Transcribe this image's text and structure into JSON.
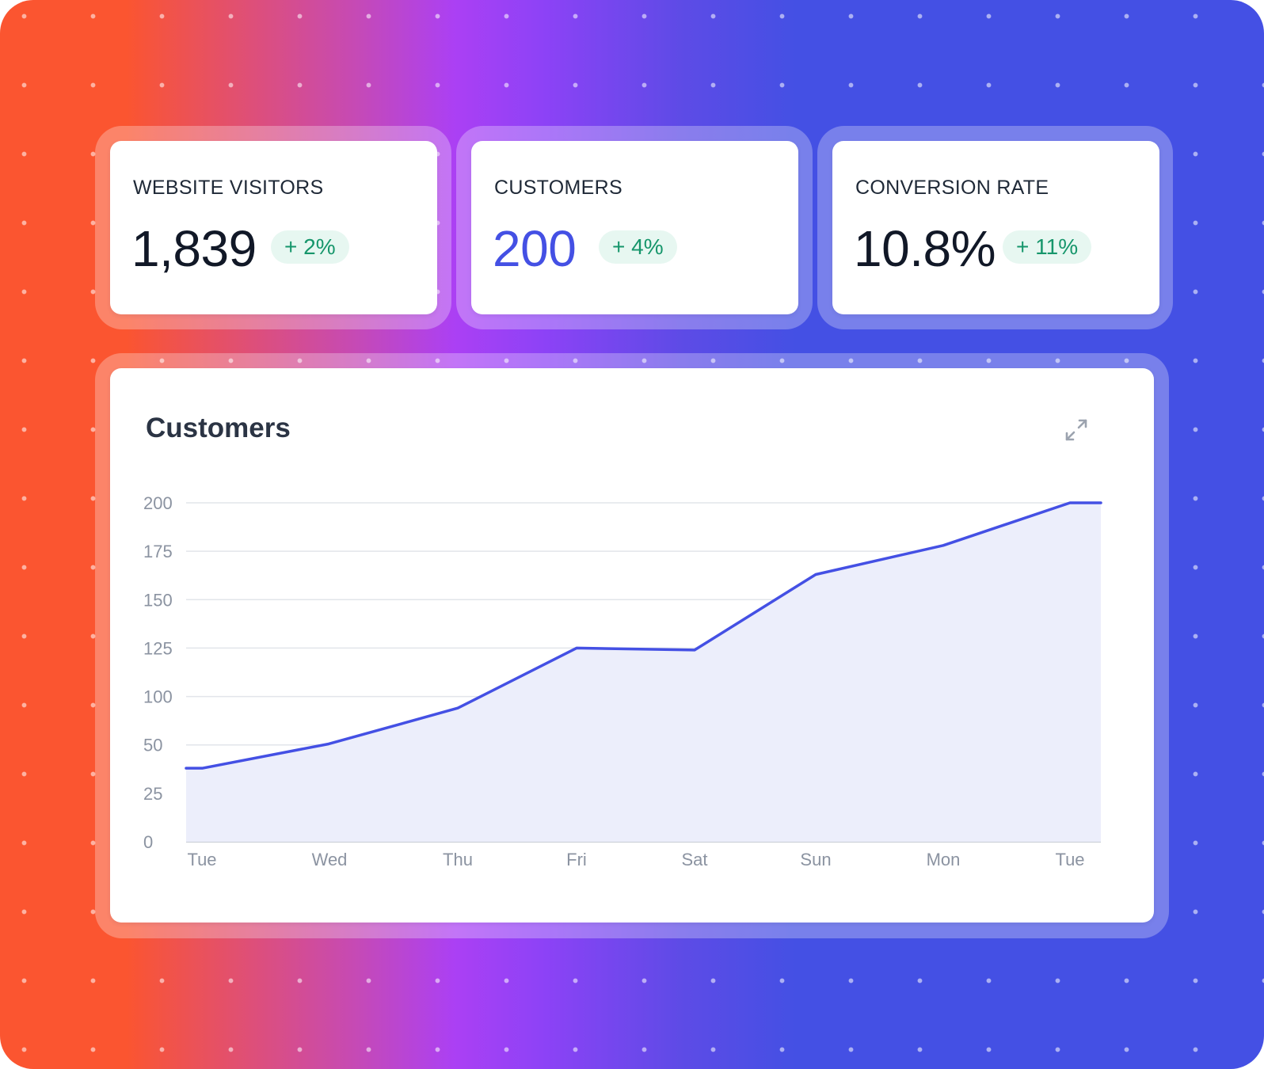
{
  "stats": [
    {
      "label": "WEBSITE VISITORS",
      "value": "1,839",
      "change": "+ 2%"
    },
    {
      "label": "CUSTOMERS",
      "value": "200",
      "change": "+ 4%"
    },
    {
      "label": "CONVERSION RATE",
      "value": "10.8%",
      "change": "+ 11%"
    }
  ],
  "chart_panel": {
    "title": "Customers",
    "expand_icon": "expand-arrows-icon"
  },
  "colors": {
    "accent": "#4450e4",
    "badge_bg": "#e7f7f1",
    "badge_text": "#16966b",
    "area_fill": "#eceefb"
  },
  "chart_data": {
    "type": "area",
    "title": "",
    "xlabel": "",
    "ylabel": "",
    "categories": [
      "Tue",
      "Wed",
      "Thu",
      "Fri",
      "Sat",
      "Sun",
      "Mon",
      "Tue"
    ],
    "y_tick_labels": [
      "0",
      "25",
      "50",
      "100",
      "125",
      "150",
      "175",
      "200"
    ],
    "ylim": [
      0,
      200
    ],
    "grid": true,
    "series": [
      {
        "values": [
          38,
          51,
          88,
          125,
          124,
          163,
          178,
          200
        ]
      }
    ]
  }
}
